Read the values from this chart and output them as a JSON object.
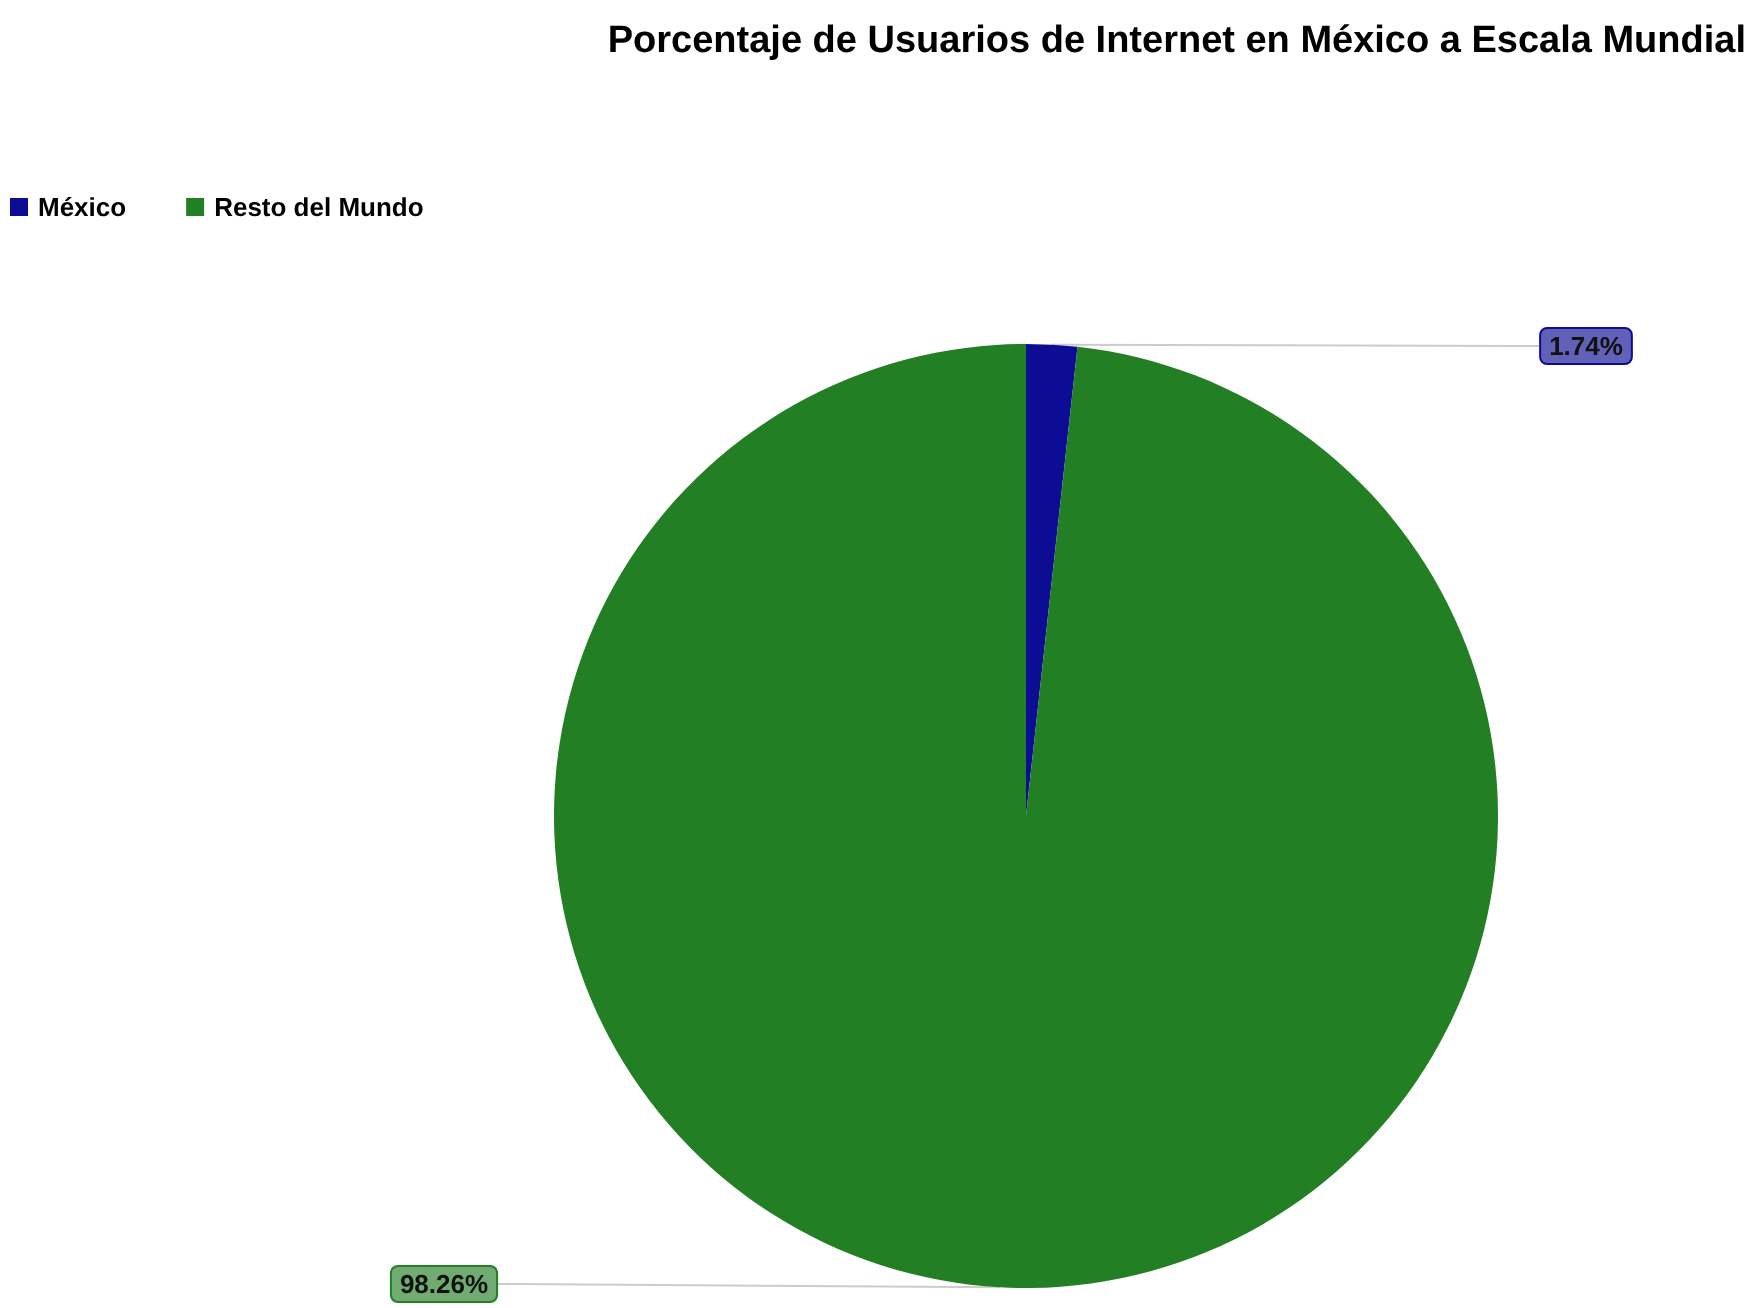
{
  "chart_data": {
    "type": "pie",
    "title": "Porcentaje de Usuarios de Internet en México a Escala Mundial",
    "categories": [
      "México",
      "Resto del Mundo"
    ],
    "values": [
      1.74,
      98.26
    ],
    "colors": [
      "#0c0c94",
      "#237f24"
    ],
    "value_labels": [
      "1.74%",
      "98.26%"
    ],
    "legend": "top left"
  }
}
